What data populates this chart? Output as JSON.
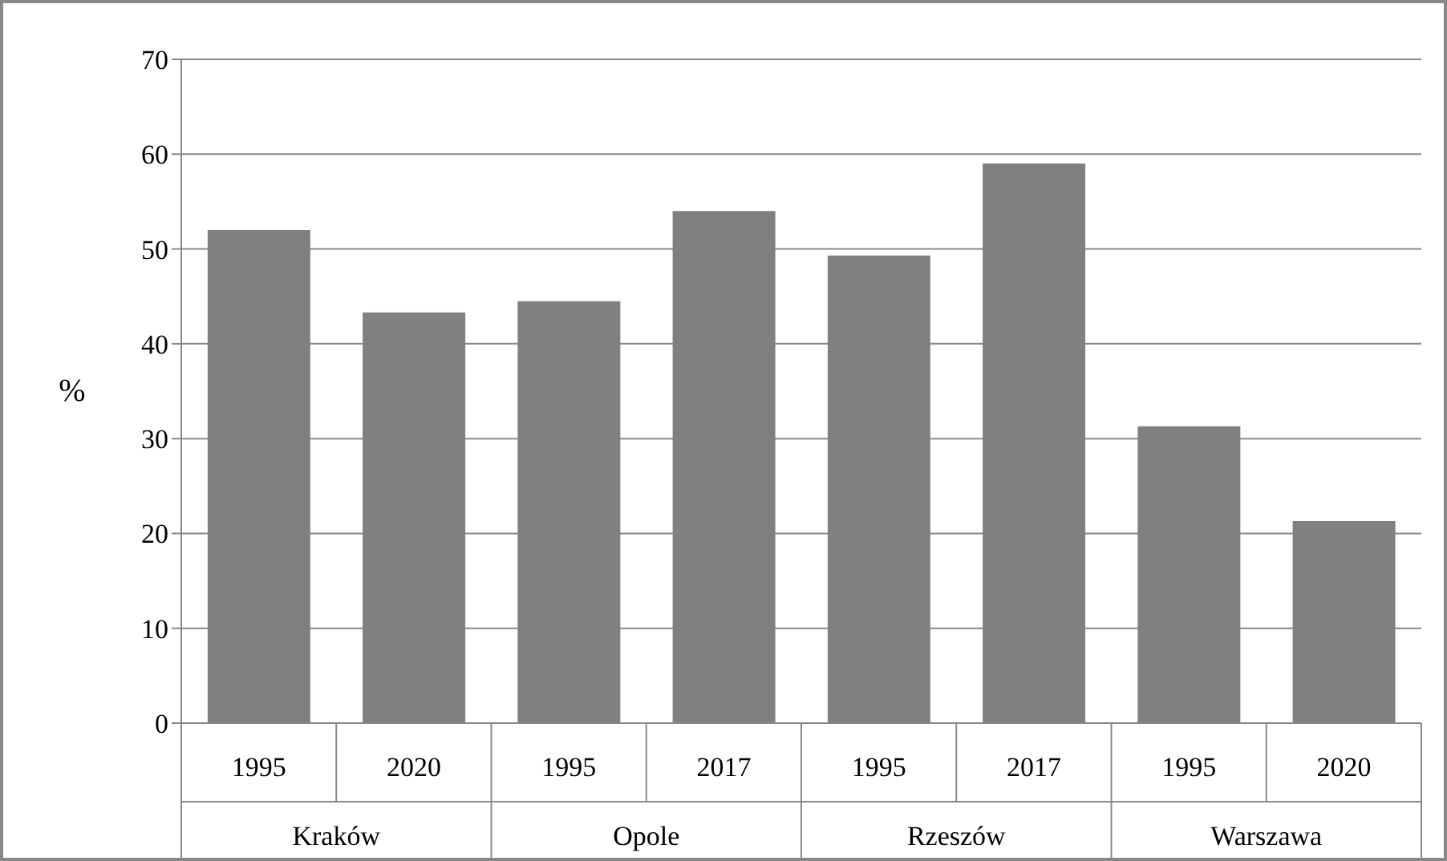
{
  "chart_data": {
    "type": "bar",
    "ylabel": "%",
    "categories": [
      "1995",
      "2020",
      "1995",
      "2017",
      "1995",
      "2017",
      "1995",
      "2020"
    ],
    "values": [
      52,
      43.3,
      44.5,
      54,
      49.3,
      59,
      31.3,
      21.3
    ],
    "color": "#808080",
    "ylim": [
      0,
      70
    ],
    "yticks": [
      0,
      10,
      20,
      30,
      40,
      50,
      60,
      70
    ],
    "grid": "y",
    "annotations": [
      "Kraków",
      "Opole",
      "Rzeszów",
      "Warszawa"
    ]
  }
}
